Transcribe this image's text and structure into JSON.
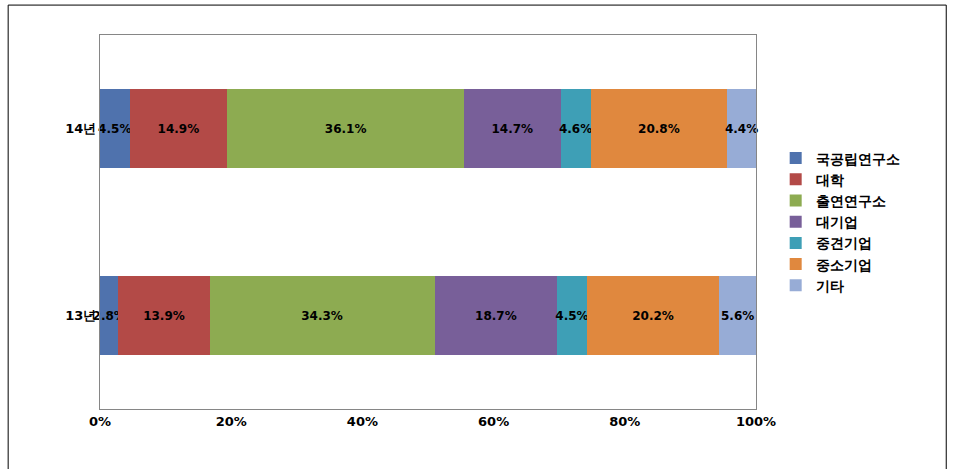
{
  "chart_data": {
    "type": "bar",
    "orientation": "horizontal",
    "stacked": true,
    "data_labels": true,
    "grid": false,
    "legend": "right",
    "categories": [
      "13년",
      "14년"
    ],
    "series": [
      {
        "name": "국공립연구소",
        "color": "#4f72ad",
        "values": [
          2.8,
          4.5
        ],
        "value_labels": [
          "2.8%",
          "4.5%"
        ]
      },
      {
        "name": "대학",
        "color": "#b34a47",
        "values": [
          13.9,
          14.9
        ],
        "value_labels": [
          "13.9%",
          "14.9%"
        ]
      },
      {
        "name": "출연연구소",
        "color": "#8dab51",
        "values": [
          34.3,
          36.1
        ],
        "value_labels": [
          "34.3%",
          "36.1%"
        ]
      },
      {
        "name": "대기업",
        "color": "#785f99",
        "values": [
          18.7,
          14.7
        ],
        "value_labels": [
          "18.7%",
          "14.7%"
        ]
      },
      {
        "name": "중견기업",
        "color": "#3e9fb6",
        "values": [
          4.5,
          4.6
        ],
        "value_labels": [
          "4.5%",
          "4.6%"
        ]
      },
      {
        "name": "중소기업",
        "color": "#e0883e",
        "values": [
          20.2,
          20.8
        ],
        "value_labels": [
          "20.2%",
          "20.8%"
        ]
      },
      {
        "name": "기타",
        "color": "#97acd6",
        "values": [
          5.6,
          4.4
        ],
        "value_labels": [
          "5.6%",
          "4.4%"
        ]
      }
    ],
    "xlim": [
      0,
      100
    ],
    "xticks": [
      {
        "value": 0,
        "label": "0%"
      },
      {
        "value": 20,
        "label": "20%"
      },
      {
        "value": 40,
        "label": "40%"
      },
      {
        "value": 60,
        "label": "60%"
      },
      {
        "value": 80,
        "label": "80%"
      },
      {
        "value": 100,
        "label": "100%"
      }
    ]
  }
}
